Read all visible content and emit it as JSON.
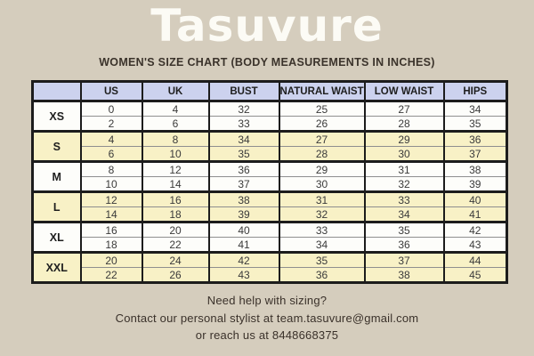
{
  "page": {
    "background_color": "#d5cdbd",
    "title": "Tasuvure",
    "subtitle": "WOMEN'S SIZE CHART (BODY MEASUREMENTS IN INCHES)"
  },
  "size_chart": {
    "columns": [
      "",
      "US",
      "UK",
      "BUST",
      "NATURAL WAIST",
      "LOW WAIST",
      "HIPS"
    ],
    "colors": {
      "header_bg": "#ccd2ee",
      "shaded_row_bg": "#f8f1c6",
      "plain_row_bg": "#fdfdfa",
      "border": "#1c1c1c"
    },
    "groups": [
      {
        "size": "XS",
        "shaded": false,
        "rows": [
          [
            0,
            4,
            32,
            25,
            27,
            34
          ],
          [
            2,
            6,
            33,
            26,
            28,
            35
          ]
        ]
      },
      {
        "size": "S",
        "shaded": true,
        "rows": [
          [
            4,
            8,
            34,
            27,
            29,
            36
          ],
          [
            6,
            10,
            35,
            28,
            30,
            37
          ]
        ]
      },
      {
        "size": "M",
        "shaded": false,
        "rows": [
          [
            8,
            12,
            36,
            29,
            31,
            38
          ],
          [
            10,
            14,
            37,
            30,
            32,
            39
          ]
        ]
      },
      {
        "size": "L",
        "shaded": true,
        "rows": [
          [
            12,
            16,
            38,
            31,
            33,
            40
          ],
          [
            14,
            18,
            39,
            32,
            34,
            41
          ]
        ]
      },
      {
        "size": "XL",
        "shaded": false,
        "rows": [
          [
            16,
            20,
            40,
            33,
            35,
            42
          ],
          [
            18,
            22,
            41,
            34,
            36,
            43
          ]
        ]
      },
      {
        "size": "XXL",
        "shaded": true,
        "rows": [
          [
            20,
            24,
            42,
            35,
            37,
            44
          ],
          [
            22,
            26,
            43,
            36,
            38,
            45
          ]
        ]
      }
    ]
  },
  "footer": {
    "line1": "Need help with sizing?",
    "line2": "Contact our personal stylist at team.tasuvure@gmail.com",
    "line3": "or reach us at 8448668375"
  }
}
